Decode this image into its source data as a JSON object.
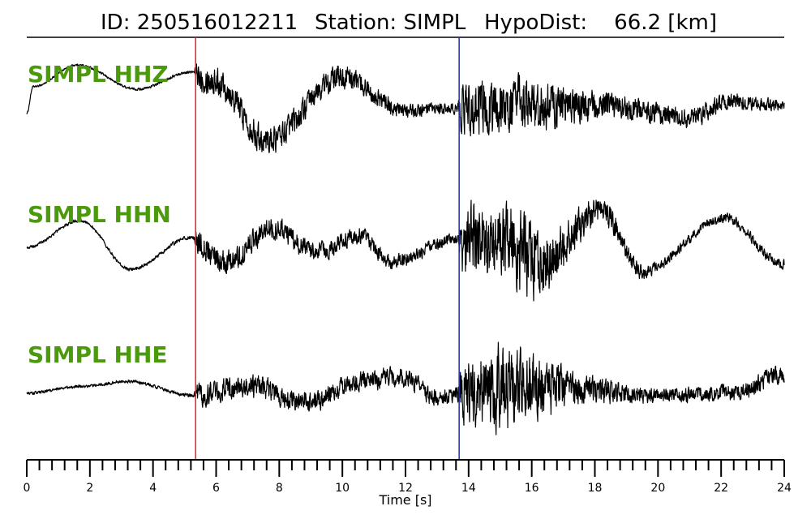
{
  "header": {
    "id_text": "ID: 250516012211",
    "station_text": "Station: SIMPL",
    "hypodist_text": "HypoDist:    66.2 [km]"
  },
  "colors": {
    "label": "#4a9a0c",
    "trace": "#000000",
    "p_pick": "#e8202a",
    "s_pick": "#1f2ea0"
  },
  "chart_data": {
    "type": "line",
    "title": "ID: 250516012211   Station: SIMPL   HypoDist:    66.2 [km]",
    "xlabel": "Time [s]",
    "ylabel": "",
    "xlim": [
      0,
      24
    ],
    "x_ticks": [
      0,
      2,
      4,
      6,
      8,
      10,
      12,
      14,
      16,
      18,
      20,
      22,
      24
    ],
    "x_tick_labels": [
      "0",
      "2",
      "4",
      "6",
      "8",
      "10",
      "12",
      "14",
      "16",
      "18",
      "20",
      "22",
      "24"
    ],
    "minor_tick_step": 0.4,
    "grid": false,
    "picks": [
      {
        "phase": "P",
        "time": 5.35
      },
      {
        "phase": "S",
        "time": 13.7
      }
    ],
    "series": [
      {
        "name": "SIMPL HHZ",
        "sample_rate_hz": 100,
        "duration_s": 24,
        "envelope": [
          [
            0,
            0
          ],
          [
            0.2,
            0.55
          ],
          [
            1.6,
            1.0
          ],
          [
            3.5,
            0.5
          ],
          [
            5.2,
            0.85
          ],
          [
            6.0,
            0.65
          ],
          [
            7.6,
            -0.55
          ],
          [
            10.0,
            0.75
          ],
          [
            12.0,
            0.05
          ],
          [
            13.7,
            0.1
          ],
          [
            15.5,
            0.15
          ],
          [
            18.5,
            0.15
          ],
          [
            21.0,
            -0.1
          ],
          [
            22.3,
            0.25
          ],
          [
            24,
            0.15
          ]
        ],
        "noise_profile": [
          [
            0,
            0.02
          ],
          [
            5.3,
            0.03
          ],
          [
            5.4,
            0.3
          ],
          [
            10,
            0.25
          ],
          [
            12,
            0.15
          ],
          [
            13.65,
            0.12
          ],
          [
            13.8,
            0.55
          ],
          [
            15.5,
            0.6
          ],
          [
            18,
            0.3
          ],
          [
            24,
            0.12
          ]
        ]
      },
      {
        "name": "SIMPL HHN",
        "sample_rate_hz": 100,
        "duration_s": 24,
        "envelope": [
          [
            0,
            0
          ],
          [
            1.7,
            0.55
          ],
          [
            3.3,
            -0.45
          ],
          [
            5.2,
            0.2
          ],
          [
            6.3,
            -0.35
          ],
          [
            7.8,
            0.4
          ],
          [
            9.2,
            -0.1
          ],
          [
            10.5,
            0.25
          ],
          [
            11.6,
            -0.3
          ],
          [
            13.5,
            0.15
          ],
          [
            14.8,
            0.2
          ],
          [
            16.3,
            -0.3
          ],
          [
            18.2,
            0.75
          ],
          [
            19.5,
            -0.5
          ],
          [
            22.1,
            0.6
          ],
          [
            24,
            -0.35
          ]
        ],
        "noise_profile": [
          [
            0,
            0.03
          ],
          [
            5.3,
            0.04
          ],
          [
            5.4,
            0.3
          ],
          [
            8,
            0.22
          ],
          [
            13.65,
            0.12
          ],
          [
            13.8,
            0.7
          ],
          [
            15.8,
            0.85
          ],
          [
            17.5,
            0.35
          ],
          [
            20,
            0.1
          ],
          [
            24,
            0.1
          ]
        ]
      },
      {
        "name": "SIMPL HHE",
        "sample_rate_hz": 100,
        "duration_s": 24,
        "envelope": [
          [
            0,
            -0.05
          ],
          [
            1.8,
            0.1
          ],
          [
            3.2,
            0.2
          ],
          [
            5.3,
            -0.1
          ],
          [
            7.0,
            0.1
          ],
          [
            9.0,
            -0.25
          ],
          [
            10.5,
            0.2
          ],
          [
            11.9,
            0.3
          ],
          [
            13.0,
            -0.15
          ],
          [
            14.5,
            0.05
          ],
          [
            17.0,
            0.05
          ],
          [
            20.0,
            -0.1
          ],
          [
            22.3,
            -0.05
          ],
          [
            24,
            0.35
          ]
        ],
        "noise_profile": [
          [
            0,
            0.03
          ],
          [
            5.3,
            0.04
          ],
          [
            5.4,
            0.25
          ],
          [
            12.5,
            0.2
          ],
          [
            13.65,
            0.15
          ],
          [
            13.8,
            0.65
          ],
          [
            15.2,
            0.95
          ],
          [
            17.5,
            0.3
          ],
          [
            20,
            0.15
          ],
          [
            24,
            0.2
          ]
        ]
      }
    ]
  }
}
